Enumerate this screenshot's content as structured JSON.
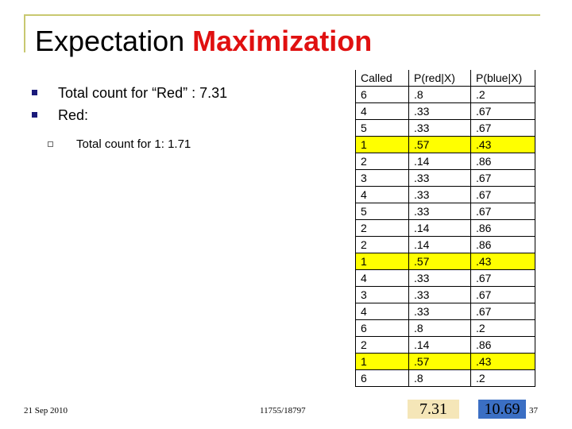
{
  "slide": {
    "title_main": "Expectation",
    "title_accent": "Maximization",
    "bullets": [
      "Total count for “Red” : 7.31",
      "Red:"
    ],
    "sub_bullet": "Total count for 1:  1.71",
    "footer_date": "21 Sep 2010",
    "footer_course": "11755/18797",
    "page_number": "37"
  },
  "table": {
    "headers": [
      "Called",
      "P(red|X)",
      "P(blue|X)"
    ],
    "rows": [
      [
        "6",
        ".8",
        ".2"
      ],
      [
        "4",
        ".33",
        ".67"
      ],
      [
        "5",
        ".33",
        ".67"
      ],
      [
        "1",
        ".57",
        ".43"
      ],
      [
        "2",
        ".14",
        ".86"
      ],
      [
        "3",
        ".33",
        ".67"
      ],
      [
        "4",
        ".33",
        ".67"
      ],
      [
        "5",
        ".33",
        ".67"
      ],
      [
        "2",
        ".14",
        ".86"
      ],
      [
        "2",
        ".14",
        ".86"
      ],
      [
        "1",
        ".57",
        ".43"
      ],
      [
        "4",
        ".33",
        ".67"
      ],
      [
        "3",
        ".33",
        ".67"
      ],
      [
        "4",
        ".33",
        ".67"
      ],
      [
        "6",
        ".8",
        ".2"
      ],
      [
        "2",
        ".14",
        ".86"
      ],
      [
        "1",
        ".57",
        ".43"
      ],
      [
        "6",
        ".8",
        ".2"
      ]
    ],
    "highlight_called": "1",
    "total_red": "7.31",
    "total_blue": "10.69"
  },
  "colors": {
    "title_accent": "#e01010",
    "bullet_marker": "#1a1a7a",
    "frame": "#c8c870",
    "row_highlight": "#ffff00",
    "total_red_fill": "#f5e6b8",
    "total_blue_fill": "#3b6fc4"
  }
}
